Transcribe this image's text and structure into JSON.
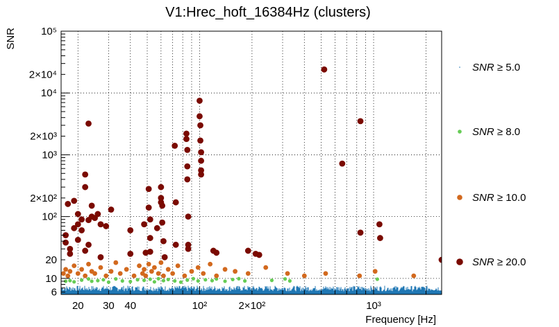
{
  "chart_data": {
    "type": "scatter",
    "title": "V1:Hrec_hoft_16384Hz (clusters)",
    "xlabel": "Frequency [Hz]",
    "ylabel": "SNR",
    "xscale": "log",
    "yscale": "log",
    "xlim": [
      16,
      2460
    ],
    "ylim": [
      5.5,
      100000
    ],
    "grid": true,
    "legend_position": "right",
    "x_ticks": [
      {
        "value": 20,
        "label": "20"
      },
      {
        "value": 30,
        "label": "30"
      },
      {
        "value": 40,
        "label": "40"
      },
      {
        "value": 100,
        "label": "10²"
      },
      {
        "value": 200,
        "label": "2×10²"
      },
      {
        "value": 1000,
        "label": "10³"
      }
    ],
    "y_ticks": [
      {
        "value": 6,
        "label": "6"
      },
      {
        "value": 10,
        "label": "10"
      },
      {
        "value": 20,
        "label": "20"
      },
      {
        "value": 100,
        "label": "10²"
      },
      {
        "value": 200,
        "label": "2×10²"
      },
      {
        "value": 1000,
        "label": "10³"
      },
      {
        "value": 2000,
        "label": "2×10³"
      },
      {
        "value": 10000,
        "label": "10⁴"
      },
      {
        "value": 20000,
        "label": "2×10⁴"
      },
      {
        "value": 100000,
        "label": "10⁵"
      }
    ],
    "series": [
      {
        "name": "SNR ≥ 5.0",
        "label_var": "SNR",
        "label_rest": " ≥ 5.0",
        "color": "#1f77b4",
        "marker": "dot",
        "description": "dense band of low-SNR clusters across all frequencies, SNR 5.5–8"
      },
      {
        "name": "SNR ≥ 8.0",
        "label_var": "SNR",
        "label_rest": " ≥ 8.0",
        "color": "#66cc55",
        "marker": "small-circle",
        "points": [
          [
            17,
            9
          ],
          [
            18,
            9.2
          ],
          [
            19,
            8.8
          ],
          [
            21,
            9.4
          ],
          [
            23,
            9.8
          ],
          [
            24,
            9
          ],
          [
            26,
            9.2
          ],
          [
            28,
            9.5
          ],
          [
            30,
            8.7
          ],
          [
            33,
            9.8
          ],
          [
            36,
            9.1
          ],
          [
            40,
            8.9
          ],
          [
            44,
            9.5
          ],
          [
            48,
            9.3
          ],
          [
            52,
            9.7
          ],
          [
            55,
            8.8
          ],
          [
            58,
            9.9
          ],
          [
            62,
            9.2
          ],
          [
            66,
            9.6
          ],
          [
            72,
            9.1
          ],
          [
            78,
            8.7
          ],
          [
            85,
            9.4
          ],
          [
            92,
            9.9
          ],
          [
            98,
            9.1
          ],
          [
            108,
            9.5
          ],
          [
            118,
            9.2
          ],
          [
            125,
            9.8
          ],
          [
            140,
            9
          ],
          [
            155,
            9.6
          ],
          [
            168,
            9.9
          ],
          [
            182,
            9.1
          ],
          [
            260,
            9.3
          ],
          [
            310,
            9.8
          ],
          [
            330,
            9.1
          ],
          [
            1050,
            9.7
          ]
        ]
      },
      {
        "name": "SNR ≥ 10.0",
        "label_var": "SNR",
        "label_rest": " ≥ 10.0",
        "color": "#d2691e",
        "marker": "circle",
        "points": [
          [
            16.5,
            12
          ],
          [
            17,
            14
          ],
          [
            17.5,
            11
          ],
          [
            18,
            13
          ],
          [
            19,
            16
          ],
          [
            20,
            12
          ],
          [
            21,
            14
          ],
          [
            22,
            11
          ],
          [
            23,
            17
          ],
          [
            24,
            13
          ],
          [
            25,
            12
          ],
          [
            27,
            15
          ],
          [
            29,
            11
          ],
          [
            31,
            13
          ],
          [
            33,
            18
          ],
          [
            35,
            12
          ],
          [
            38,
            14
          ],
          [
            42,
            11
          ],
          [
            45,
            16
          ],
          [
            47,
            12
          ],
          [
            48,
            14
          ],
          [
            49,
            11
          ],
          [
            51,
            17
          ],
          [
            53,
            13
          ],
          [
            55,
            15
          ],
          [
            58,
            12
          ],
          [
            60,
            18
          ],
          [
            62,
            11
          ],
          [
            66,
            14
          ],
          [
            70,
            12
          ],
          [
            75,
            16
          ],
          [
            82,
            11
          ],
          [
            90,
            13
          ],
          [
            98,
            15
          ],
          [
            105,
            12
          ],
          [
            115,
            17
          ],
          [
            125,
            11
          ],
          [
            140,
            14
          ],
          [
            160,
            13
          ],
          [
            190,
            12
          ],
          [
            240,
            15
          ],
          [
            320,
            12
          ],
          [
            400,
            11
          ],
          [
            530,
            12
          ],
          [
            830,
            11
          ],
          [
            1020,
            13
          ],
          [
            1700,
            11
          ]
        ]
      },
      {
        "name": "SNR ≥ 20.0",
        "label_var": "SNR",
        "label_rest": " ≥ 20.0",
        "color": "#7a0a00",
        "marker": "large-circle",
        "points": [
          [
            17,
            50
          ],
          [
            17,
            38
          ],
          [
            17.5,
            160
          ],
          [
            18,
            30
          ],
          [
            18,
            25
          ],
          [
            19,
            180
          ],
          [
            19,
            65
          ],
          [
            20,
            110
          ],
          [
            20,
            75
          ],
          [
            20,
            42
          ],
          [
            21,
            90
          ],
          [
            21,
            60
          ],
          [
            22,
            480
          ],
          [
            22,
            300
          ],
          [
            22,
            28
          ],
          [
            23,
            3200
          ],
          [
            23,
            88
          ],
          [
            23,
            35
          ],
          [
            24,
            100
          ],
          [
            24,
            150
          ],
          [
            25,
            95
          ],
          [
            26,
            110
          ],
          [
            27,
            75
          ],
          [
            27,
            22
          ],
          [
            29,
            70
          ],
          [
            31,
            130
          ],
          [
            40,
            60
          ],
          [
            40,
            25
          ],
          [
            48,
            75
          ],
          [
            49,
            26
          ],
          [
            51,
            280
          ],
          [
            51,
            140
          ],
          [
            52,
            90
          ],
          [
            52,
            45
          ],
          [
            52,
            27
          ],
          [
            57,
            65
          ],
          [
            60,
            300
          ],
          [
            60,
            200
          ],
          [
            60,
            170
          ],
          [
            61,
            150
          ],
          [
            61,
            80
          ],
          [
            62,
            40
          ],
          [
            63,
            22
          ],
          [
            72,
            1400
          ],
          [
            73,
            170
          ],
          [
            73,
            35
          ],
          [
            84,
            2200
          ],
          [
            84,
            1800
          ],
          [
            85,
            1200
          ],
          [
            85,
            650
          ],
          [
            85,
            400
          ],
          [
            86,
            100
          ],
          [
            86,
            35
          ],
          [
            86,
            30
          ],
          [
            100,
            7500
          ],
          [
            100,
            4200
          ],
          [
            101,
            3000
          ],
          [
            101,
            1700
          ],
          [
            102,
            1100
          ],
          [
            102,
            800
          ],
          [
            102,
            560
          ],
          [
            102,
            480
          ],
          [
            120,
            28
          ],
          [
            125,
            26
          ],
          [
            190,
            28
          ],
          [
            210,
            25
          ],
          [
            220,
            24
          ],
          [
            520,
            24000
          ],
          [
            660,
            720
          ],
          [
            840,
            3500
          ],
          [
            840,
            55
          ],
          [
            1080,
            75
          ],
          [
            1090,
            45
          ],
          [
            2460,
            20
          ]
        ]
      }
    ]
  }
}
